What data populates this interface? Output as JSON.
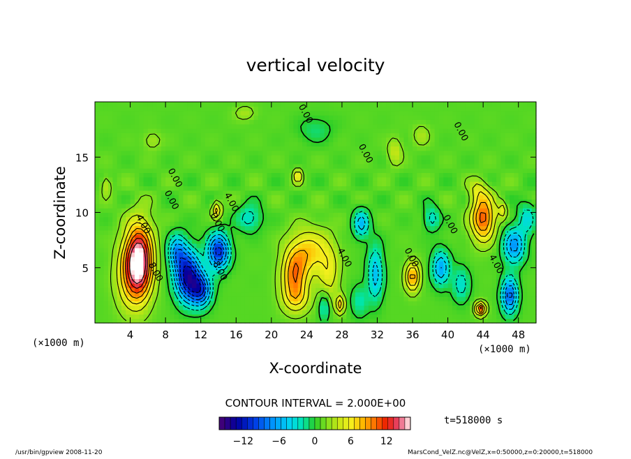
{
  "chart_data": {
    "type": "heatmap",
    "title": "vertical velocity",
    "xlabel": "X-coordinate",
    "ylabel": "Z-coordinate",
    "x_unit": "(×1000 m)",
    "y_unit": "(×1000 m)",
    "xlim": [
      0,
      50
    ],
    "ylim": [
      0,
      20
    ],
    "x_ticks": [
      4,
      8,
      12,
      16,
      20,
      24,
      28,
      32,
      36,
      40,
      44,
      48
    ],
    "y_ticks": [
      5,
      10,
      15
    ],
    "contour_interval_text": "CONTOUR INTERVAL = 2.000E+00",
    "time_text": "t=518000 s",
    "colorbar": {
      "range": [
        -16,
        16
      ],
      "ticks": [
        -12,
        -6,
        0,
        6,
        12
      ],
      "tick_labels": [
        "−12",
        "−6",
        "0",
        "6",
        "12"
      ]
    },
    "contour_labels": [
      {
        "text": "4.00",
        "x": 5.2,
        "z": 8.8
      },
      {
        "text": "8.00",
        "x": 6.6,
        "z": 4.5
      },
      {
        "text": "0.00",
        "x": 8.4,
        "z": 11.0
      },
      {
        "text": "0.00",
        "x": 8.8,
        "z": 13.0
      },
      {
        "text": "0.00",
        "x": 13.6,
        "z": 9.0
      },
      {
        "text": "4.00",
        "x": 15.2,
        "z": 10.8
      },
      {
        "text": "8.00",
        "x": 13.9,
        "z": 4.6
      },
      {
        "text": "0.00",
        "x": 23.6,
        "z": 18.8
      },
      {
        "text": "4.00",
        "x": 28.0,
        "z": 5.8
      },
      {
        "text": "0.00",
        "x": 30.4,
        "z": 15.2
      },
      {
        "text": "0.00",
        "x": 35.6,
        "z": 5.8
      },
      {
        "text": "0.00",
        "x": 40.0,
        "z": 8.8
      },
      {
        "text": "0.00",
        "x": 41.2,
        "z": 17.2
      },
      {
        "text": "4.00",
        "x": 45.2,
        "z": 5.2
      }
    ],
    "extrema": [
      {
        "x": 5.0,
        "z": 5.6,
        "value": 16,
        "sx": 1.5,
        "sz": 3.2
      },
      {
        "x": 3.8,
        "z": 4.2,
        "value": 4,
        "sx": 1.6,
        "sz": 3.0
      },
      {
        "x": 10.5,
        "z": 4.3,
        "value": -14,
        "sx": 1.4,
        "sz": 2.2
      },
      {
        "x": 12.0,
        "z": 3.0,
        "value": -10,
        "sx": 1.2,
        "sz": 1.5
      },
      {
        "x": 14.0,
        "z": 6.5,
        "value": -12,
        "sx": 1.2,
        "sz": 1.6
      },
      {
        "x": 9.3,
        "z": 6.5,
        "value": -7,
        "sx": 1.0,
        "sz": 1.5
      },
      {
        "x": 13.8,
        "z": 10.2,
        "value": 6,
        "sx": 0.5,
        "sz": 0.8
      },
      {
        "x": 17.5,
        "z": 9.5,
        "value": -4,
        "sx": 1.4,
        "sz": 1.2
      },
      {
        "x": 22.6,
        "z": 4.3,
        "value": 8,
        "sx": 1.4,
        "sz": 2.1
      },
      {
        "x": 24.2,
        "z": 6.5,
        "value": 6,
        "sx": 2.2,
        "sz": 2.0
      },
      {
        "x": 22.8,
        "z": 2.2,
        "value": 4,
        "sx": 1.6,
        "sz": 1.4
      },
      {
        "x": 26.5,
        "z": 4.5,
        "value": 4,
        "sx": 1.2,
        "sz": 2.5
      },
      {
        "x": 23.0,
        "z": 13.3,
        "value": 6,
        "sx": 0.4,
        "sz": 0.6
      },
      {
        "x": 26.0,
        "z": 1.5,
        "value": -4,
        "sx": 0.6,
        "sz": 1.4
      },
      {
        "x": 27.8,
        "z": 1.7,
        "value": 6,
        "sx": 0.5,
        "sz": 0.8
      },
      {
        "x": 31.8,
        "z": 4.5,
        "value": -6,
        "sx": 0.9,
        "sz": 2.5
      },
      {
        "x": 30.2,
        "z": 9.0,
        "value": -6,
        "sx": 0.9,
        "sz": 1.3
      },
      {
        "x": 30.0,
        "z": 2.0,
        "value": -3,
        "sx": 1.0,
        "sz": 1.5
      },
      {
        "x": 36.0,
        "z": 4.2,
        "value": 8,
        "sx": 0.8,
        "sz": 1.3
      },
      {
        "x": 39.2,
        "z": 5.0,
        "value": -7,
        "sx": 1.0,
        "sz": 1.6
      },
      {
        "x": 38.2,
        "z": 9.5,
        "value": -4,
        "sx": 0.9,
        "sz": 1.1
      },
      {
        "x": 41.5,
        "z": 3.5,
        "value": -4,
        "sx": 1.0,
        "sz": 1.6
      },
      {
        "x": 44.0,
        "z": 9.5,
        "value": 10,
        "sx": 1.3,
        "sz": 2.0
      },
      {
        "x": 43.4,
        "z": 12.0,
        "value": 3,
        "sx": 1.0,
        "sz": 1.0
      },
      {
        "x": 43.7,
        "z": 1.3,
        "value": 10,
        "sx": 0.6,
        "sz": 0.6
      },
      {
        "x": 47.0,
        "z": 2.5,
        "value": -10,
        "sx": 0.9,
        "sz": 1.6
      },
      {
        "x": 47.5,
        "z": 7.0,
        "value": -8,
        "sx": 1.2,
        "sz": 1.6
      },
      {
        "x": 46.2,
        "z": 10.2,
        "value": 4,
        "sx": 0.5,
        "sz": 0.8
      },
      {
        "x": 49.0,
        "z": 9.5,
        "value": -4,
        "sx": 1.0,
        "sz": 1.5
      },
      {
        "x": 1.3,
        "z": 12.5,
        "value": 3,
        "sx": 0.6,
        "sz": 0.8
      },
      {
        "x": 25.0,
        "z": 17.5,
        "value": -2,
        "sx": 2.0,
        "sz": 1.2
      },
      {
        "x": 34.0,
        "z": 15.5,
        "value": 3,
        "sx": 0.8,
        "sz": 1.2
      },
      {
        "x": 37.0,
        "z": 17.0,
        "value": 2,
        "sx": 1.0,
        "sz": 1.0
      },
      {
        "x": 17.0,
        "z": 19.0,
        "value": 2,
        "sx": 1.2,
        "sz": 0.7
      },
      {
        "x": 6.5,
        "z": 16.5,
        "value": 2,
        "sx": 1.0,
        "sz": 0.8
      }
    ]
  },
  "footer": {
    "left": "/usr/bin/gpview  2008-11-20",
    "right": "MarsCond_VelZ.nc@VelZ,x=0:50000,z=0:20000,t=518000"
  }
}
